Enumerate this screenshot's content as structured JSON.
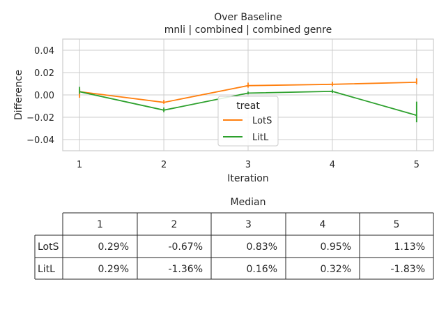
{
  "chart_data": {
    "type": "line",
    "title": "Over Baseline",
    "subtitle": "mnli | combined | combined genre",
    "xlabel": "Iteration",
    "ylabel": "Difference",
    "x": [
      1,
      2,
      3,
      4,
      5
    ],
    "xticks": [
      "1",
      "2",
      "3",
      "4",
      "5"
    ],
    "yticks": [
      "0.04",
      "0.02",
      "0.00",
      "−0.02",
      "−0.04"
    ],
    "ytick_values": [
      0.04,
      0.02,
      0.0,
      -0.02,
      -0.04
    ],
    "ylim": [
      -0.05,
      0.05
    ],
    "xlim": [
      0.8,
      5.2
    ],
    "grid": true,
    "legend": {
      "title": "treat",
      "placement": "lower-center"
    },
    "series": [
      {
        "name": "LotS",
        "color": "#ff7f0e",
        "values": [
          0.0029,
          -0.0067,
          0.0083,
          0.0095,
          0.0113
        ],
        "err_lo": [
          -0.0025,
          -0.008,
          0.0065,
          0.0078,
          0.0095
        ],
        "err_hi": [
          0.0052,
          -0.0045,
          0.011,
          0.0118,
          0.0148
        ]
      },
      {
        "name": "LitL",
        "color": "#2ca02c",
        "values": [
          0.0029,
          -0.0136,
          0.0016,
          0.0032,
          -0.0183
        ],
        "err_lo": [
          0.001,
          -0.0155,
          0.0005,
          0.0018,
          -0.0245
        ],
        "err_hi": [
          0.0072,
          -0.0113,
          0.003,
          0.0048,
          -0.006
        ]
      }
    ],
    "table": {
      "title": "Median",
      "columns": [
        "1",
        "2",
        "3",
        "4",
        "5"
      ],
      "rows": [
        {
          "label": "LotS",
          "cells": [
            "0.29%",
            "-0.67%",
            "0.83%",
            "0.95%",
            "1.13%"
          ]
        },
        {
          "label": "LitL",
          "cells": [
            "0.29%",
            "-1.36%",
            "0.16%",
            "0.32%",
            "-1.83%"
          ]
        }
      ]
    }
  }
}
